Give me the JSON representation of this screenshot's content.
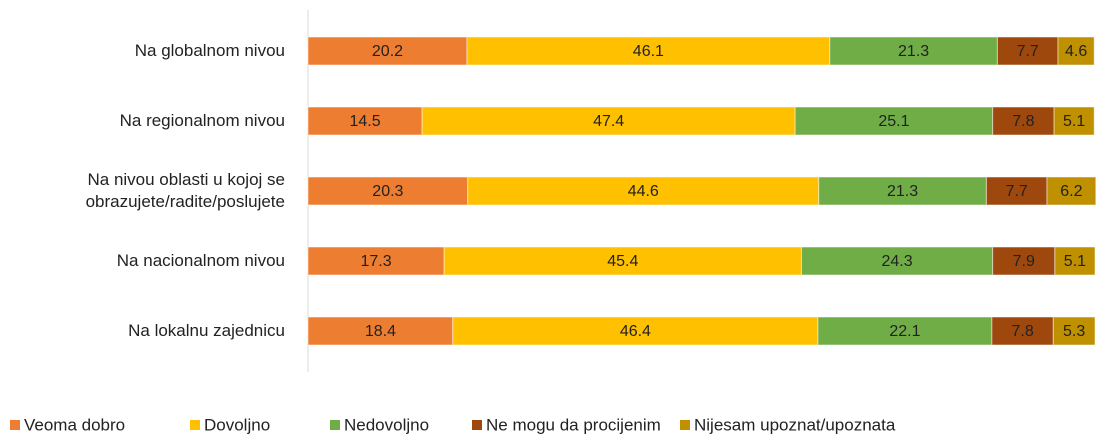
{
  "chart_data": {
    "type": "stacked_barh",
    "categories": [
      "Na globalnom nivou",
      "Na regionalnom nivou",
      "Na nivou oblasti u kojoj se obrazujete/radite/poslujete",
      "Na nacionalnom nivou",
      "Na lokalnu zajednicu"
    ],
    "series": [
      {
        "name": "Veoma dobro",
        "color": "#ed7d31",
        "values": [
          20.2,
          14.5,
          20.3,
          17.3,
          18.4
        ]
      },
      {
        "name": "Dovoljno",
        "color": "#ffc000",
        "values": [
          46.1,
          47.4,
          44.6,
          45.4,
          46.4
        ]
      },
      {
        "name": "Nedovoljno",
        "color": "#70ad47",
        "values": [
          21.3,
          25.1,
          21.3,
          24.3,
          22.1
        ]
      },
      {
        "name": "Ne mogu da procijenim",
        "color": "#9e480e",
        "values": [
          7.7,
          7.8,
          7.7,
          7.9,
          7.8
        ]
      },
      {
        "name": "Nijesam upoznat/upoznata",
        "color": "#bf9000",
        "values": [
          4.6,
          5.1,
          6.2,
          5.1,
          5.3
        ]
      }
    ],
    "xlim": [
      0,
      100
    ],
    "legend": "bottom"
  }
}
